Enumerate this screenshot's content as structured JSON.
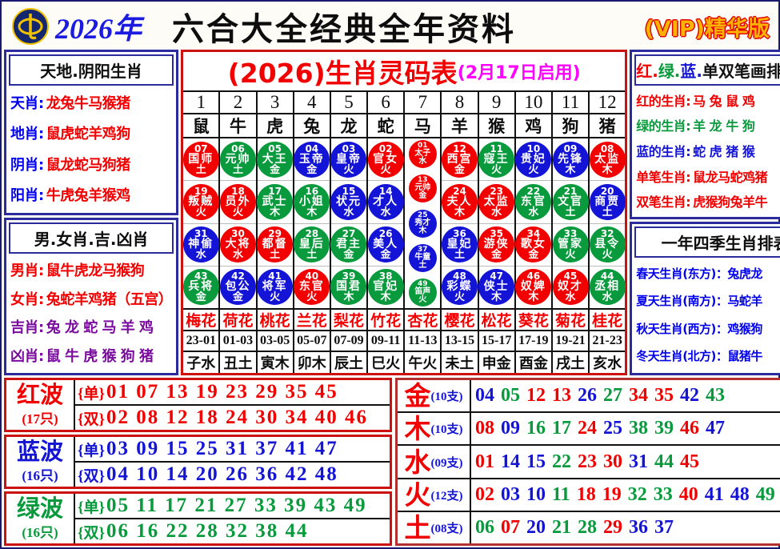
{
  "colors": {
    "red": "#f20000",
    "green": "#089a3c",
    "blue": "#1414d6",
    "labelblue": "#0000ee",
    "purple": "#7a0b9e",
    "magenta": "#ff00ff",
    "black": "#111111"
  },
  "header": {
    "year": "2026年",
    "title": "六合大全经典全年资料",
    "vip": "(VIP)精华版"
  },
  "left_top": {
    "title": "天地.阴阳生肖",
    "rows": [
      {
        "label": "天肖:",
        "value": "龙兔牛马猴猪"
      },
      {
        "label": "地肖:",
        "value": "鼠虎蛇羊鸡狗"
      },
      {
        "label": "阴肖:",
        "value": "鼠龙蛇马狗猪"
      },
      {
        "label": "阳肖:",
        "value": "牛虎兔羊猴鸡"
      }
    ]
  },
  "left_bottom": {
    "title": "男.女肖.吉.凶肖",
    "rows": [
      {
        "label": "男肖:",
        "value": "鼠牛虎龙马猴狗",
        "color": "red"
      },
      {
        "label": "女肖:",
        "value": "兔蛇羊鸡猪（五宫）",
        "color": "red"
      },
      {
        "label": "吉肖:",
        "value": "兔 龙 蛇 马 羊 鸡",
        "color": "purple"
      },
      {
        "label": "凶肖:",
        "value": "鼠 牛 虎 猴 狗 猪",
        "color": "purple"
      }
    ]
  },
  "main_table": {
    "title": "(2026)生肖灵码表",
    "subtitle": "(2月17日启用)",
    "columns": [
      {
        "num": "1",
        "zodiac": "鼠",
        "flower": "梅花",
        "time": "23-01",
        "branch": "子水",
        "balls": [
          [
            "07",
            "国师",
            "土",
            "red"
          ],
          [
            "19",
            "叛贼",
            "火",
            "red"
          ],
          [
            "31",
            "神偷",
            "水",
            "blue"
          ],
          [
            "43",
            "兵将",
            "金",
            "green"
          ]
        ]
      },
      {
        "num": "2",
        "zodiac": "牛",
        "flower": "荷花",
        "time": "01-03",
        "branch": "丑土",
        "balls": [
          [
            "06",
            "元帅",
            "土",
            "green"
          ],
          [
            "18",
            "员外",
            "火",
            "red"
          ],
          [
            "30",
            "大将",
            "水",
            "red"
          ],
          [
            "42",
            "包公",
            "金",
            "blue"
          ]
        ]
      },
      {
        "num": "3",
        "zodiac": "虎",
        "flower": "桃花",
        "time": "03-05",
        "branch": "寅木",
        "balls": [
          [
            "05",
            "大王",
            "金",
            "green"
          ],
          [
            "17",
            "武士",
            "木",
            "green"
          ],
          [
            "29",
            "都督",
            "土",
            "red"
          ],
          [
            "41",
            "将军",
            "火",
            "blue"
          ]
        ]
      },
      {
        "num": "4",
        "zodiac": "兔",
        "flower": "兰花",
        "time": "05-07",
        "branch": "卯木",
        "balls": [
          [
            "04",
            "玉帝",
            "金",
            "blue"
          ],
          [
            "16",
            "小姐",
            "木",
            "green"
          ],
          [
            "28",
            "皇后",
            "土",
            "green"
          ],
          [
            "40",
            "东官",
            "火",
            "red"
          ]
        ]
      },
      {
        "num": "5",
        "zodiac": "龙",
        "flower": "梨花",
        "time": "07-09",
        "branch": "辰土",
        "balls": [
          [
            "03",
            "皇帝",
            "火",
            "blue"
          ],
          [
            "15",
            "状元",
            "水",
            "blue"
          ],
          [
            "27",
            "君主",
            "金",
            "green"
          ],
          [
            "39",
            "国君",
            "木",
            "green"
          ]
        ]
      },
      {
        "num": "6",
        "zodiac": "蛇",
        "flower": "竹花",
        "time": "09-11",
        "branch": "巳火",
        "balls": [
          [
            "02",
            "官女",
            "火",
            "red"
          ],
          [
            "14",
            "才人",
            "水",
            "blue"
          ],
          [
            "26",
            "美人",
            "金",
            "blue"
          ],
          [
            "38",
            "官妃",
            "木",
            "green"
          ]
        ]
      },
      {
        "num": "7",
        "zodiac": "马",
        "flower": "杏花",
        "time": "11-13",
        "branch": "午火",
        "small": true,
        "balls": [
          [
            "01",
            "太子",
            "水",
            "red"
          ],
          [
            "13",
            "元帅",
            "金",
            "red"
          ],
          [
            "25",
            "秀才",
            "木",
            "blue"
          ],
          [
            "37",
            "牛童",
            "土",
            "blue"
          ],
          [
            "49",
            "笛声",
            "火",
            "green"
          ]
        ]
      },
      {
        "num": "8",
        "zodiac": "羊",
        "flower": "樱花",
        "time": "13-15",
        "branch": "未土",
        "balls": [
          [
            "12",
            "西宫",
            "金",
            "red"
          ],
          [
            "24",
            "夫人",
            "木",
            "red"
          ],
          [
            "36",
            "皇妃",
            "土",
            "blue"
          ],
          [
            "48",
            "彩蝶",
            "火",
            "blue"
          ]
        ]
      },
      {
        "num": "9",
        "zodiac": "猴",
        "flower": "松花",
        "time": "15-17",
        "branch": "申金",
        "balls": [
          [
            "11",
            "寇王",
            "火",
            "green"
          ],
          [
            "23",
            "太监",
            "水",
            "red"
          ],
          [
            "35",
            "游侠",
            "金",
            "red"
          ],
          [
            "47",
            "侠士",
            "木",
            "blue"
          ]
        ]
      },
      {
        "num": "10",
        "zodiac": "鸡",
        "flower": "葵花",
        "time": "17-19",
        "branch": "酉金",
        "balls": [
          [
            "10",
            "贵妃",
            "火",
            "blue"
          ],
          [
            "22",
            "东官",
            "水",
            "green"
          ],
          [
            "34",
            "歌女",
            "金",
            "red"
          ],
          [
            "46",
            "奴婢",
            "木",
            "red"
          ]
        ]
      },
      {
        "num": "11",
        "zodiac": "狗",
        "flower": "菊花",
        "time": "19-21",
        "branch": "戌土",
        "balls": [
          [
            "09",
            "先锋",
            "木",
            "blue"
          ],
          [
            "21",
            "文官",
            "土",
            "green"
          ],
          [
            "33",
            "管家",
            "火",
            "green"
          ],
          [
            "45",
            "奴才",
            "水",
            "red"
          ]
        ]
      },
      {
        "num": "12",
        "zodiac": "猪",
        "flower": "桂花",
        "time": "21-23",
        "branch": "亥水",
        "balls": [
          [
            "08",
            "太监",
            "木",
            "red"
          ],
          [
            "20",
            "商贾",
            "土",
            "blue"
          ],
          [
            "32",
            "县令",
            "火",
            "green"
          ],
          [
            "44",
            "丞相",
            "水",
            "green"
          ]
        ]
      }
    ]
  },
  "right_top": {
    "title_parts": [
      [
        "红.",
        "red"
      ],
      [
        "绿.",
        "green"
      ],
      [
        "蓝.",
        "blue"
      ],
      [
        "单双笔画排肖表",
        "black"
      ]
    ],
    "rows": [
      {
        "label": "红的生肖:",
        "value": "马 兔 鼠 鸡",
        "color": "red"
      },
      {
        "label": "绿的生肖:",
        "value": "羊 龙 牛 狗",
        "color": "green"
      },
      {
        "label": "蓝的生肖:",
        "value": "蛇 虎 猪 猴",
        "color": "blue"
      },
      {
        "label": "单笔生肖:",
        "value": "鼠龙马蛇鸡猪",
        "color": "red"
      },
      {
        "label": "双笔生肖:",
        "value": "虎猴狗兔羊牛",
        "color": "red"
      }
    ]
  },
  "right_bottom": {
    "title": "一年四季生肖排表",
    "rows": [
      {
        "text": "春天生肖(东方)：兔虎龙"
      },
      {
        "text": "夏天生肖(南方)：马蛇羊"
      },
      {
        "text": "秋天生肖(西方)：鸡猴狗"
      },
      {
        "text": "冬天生肖(北方)：鼠猪牛"
      }
    ]
  },
  "waves": [
    {
      "name": "红波",
      "count": "(17只)",
      "color": "red",
      "odd_tag": "{单}",
      "odd": "01 07 13 19 23 29 35 45",
      "even_tag": "{双}",
      "even": "02 08 12 18 24 30 34 40 46"
    },
    {
      "name": "蓝波",
      "count": "(16只)",
      "color": "blue",
      "odd_tag": "{单}",
      "odd": "03 09 15 25 31 37 41 47",
      "even_tag": "{双}",
      "even": "04 10 14 20 26 36 42 48"
    },
    {
      "name": "绿波",
      "count": "(16只)",
      "color": "green",
      "odd_tag": "{单}",
      "odd": "05 11 17 21 27 33 39 43 49",
      "even_tag": "{双}",
      "even": "06 16 22 28 32 38 44"
    }
  ],
  "elements": [
    {
      "name": "金",
      "count": "(10支)",
      "numbers": [
        [
          "04",
          "blue"
        ],
        [
          "05",
          "green"
        ],
        [
          "12",
          "red"
        ],
        [
          "13",
          "red"
        ],
        [
          "26",
          "blue"
        ],
        [
          "27",
          "green"
        ],
        [
          "34",
          "red"
        ],
        [
          "35",
          "red"
        ],
        [
          "42",
          "blue"
        ],
        [
          "43",
          "green"
        ]
      ]
    },
    {
      "name": "木",
      "count": "(10支)",
      "numbers": [
        [
          "08",
          "red"
        ],
        [
          "09",
          "blue"
        ],
        [
          "16",
          "green"
        ],
        [
          "17",
          "green"
        ],
        [
          "24",
          "red"
        ],
        [
          "25",
          "blue"
        ],
        [
          "38",
          "green"
        ],
        [
          "39",
          "green"
        ],
        [
          "46",
          "red"
        ],
        [
          "47",
          "blue"
        ]
      ]
    },
    {
      "name": "水",
      "count": "(09支)",
      "numbers": [
        [
          "01",
          "red"
        ],
        [
          "14",
          "blue"
        ],
        [
          "15",
          "blue"
        ],
        [
          "22",
          "green"
        ],
        [
          "23",
          "red"
        ],
        [
          "30",
          "red"
        ],
        [
          "31",
          "blue"
        ],
        [
          "44",
          "green"
        ],
        [
          "45",
          "red"
        ]
      ]
    },
    {
      "name": "火",
      "count": "(12支)",
      "numbers": [
        [
          "02",
          "red"
        ],
        [
          "03",
          "blue"
        ],
        [
          "10",
          "blue"
        ],
        [
          "11",
          "green"
        ],
        [
          "18",
          "red"
        ],
        [
          "19",
          "red"
        ],
        [
          "32",
          "green"
        ],
        [
          "33",
          "green"
        ],
        [
          "40",
          "red"
        ],
        [
          "41",
          "blue"
        ],
        [
          "48",
          "blue"
        ],
        [
          "49",
          "green"
        ]
      ]
    },
    {
      "name": "土",
      "count": "(08支)",
      "numbers": [
        [
          "06",
          "green"
        ],
        [
          "07",
          "red"
        ],
        [
          "20",
          "blue"
        ],
        [
          "21",
          "green"
        ],
        [
          "28",
          "green"
        ],
        [
          "29",
          "red"
        ],
        [
          "36",
          "blue"
        ],
        [
          "37",
          "blue"
        ]
      ]
    }
  ]
}
